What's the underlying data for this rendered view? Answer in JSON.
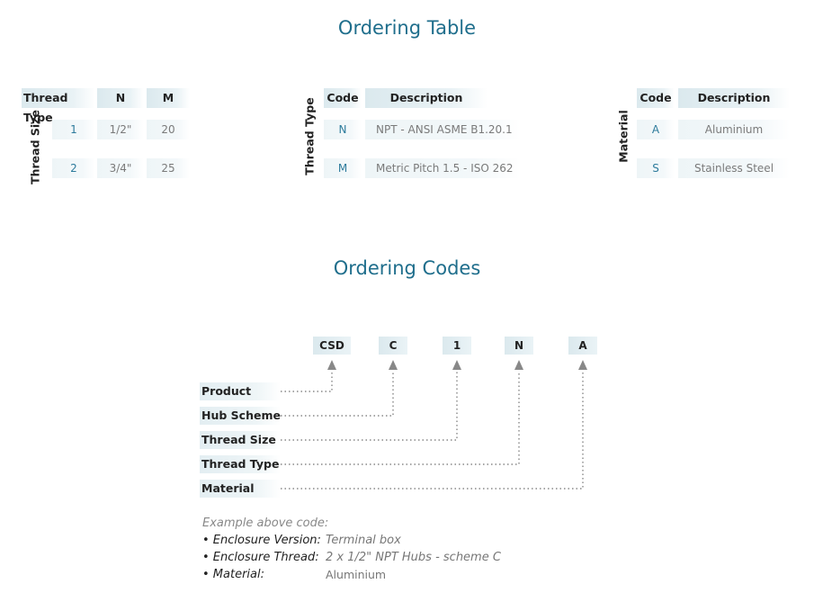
{
  "titles": {
    "ordering_table": "Ordering Table",
    "ordering_codes": "Ordering Codes"
  },
  "thread_size_table": {
    "side_label": "Thread Size",
    "headers": [
      "Thread Type",
      "N",
      "M"
    ],
    "rows": [
      {
        "code": "1",
        "n": "1/2\"",
        "m": "20"
      },
      {
        "code": "2",
        "n": "3/4\"",
        "m": "25"
      }
    ]
  },
  "thread_type_table": {
    "side_label": "Thread Type",
    "headers": [
      "Code",
      "Description"
    ],
    "rows": [
      {
        "code": "N",
        "desc": "NPT - ANSI ASME B1.20.1"
      },
      {
        "code": "M",
        "desc": "Metric Pitch 1.5 - ISO 262"
      }
    ]
  },
  "material_table": {
    "side_label": "Material",
    "headers": [
      "Code",
      "Description"
    ],
    "rows": [
      {
        "code": "A",
        "desc": "Aluminium"
      },
      {
        "code": "S",
        "desc": "Stainless Steel"
      }
    ]
  },
  "ordering_codes": {
    "codes": [
      "CSD",
      "C",
      "1",
      "N",
      "A"
    ],
    "labels": [
      "Product",
      "Hub Scheme",
      "Thread Size",
      "Thread Type",
      "Material"
    ],
    "colors": {
      "leader": "#888888",
      "accent": "#1f6e8c",
      "code_text": "#2d7b9c"
    }
  },
  "example": {
    "heading": "Example above code:",
    "items": [
      {
        "key": "• Enclosure Version:",
        "value": "Terminal box"
      },
      {
        "key": "• Enclosure Thread:",
        "value": "2 x 1/2\" NPT Hubs - scheme C"
      },
      {
        "key": "• Material:",
        "value": "Aluminium"
      }
    ]
  }
}
